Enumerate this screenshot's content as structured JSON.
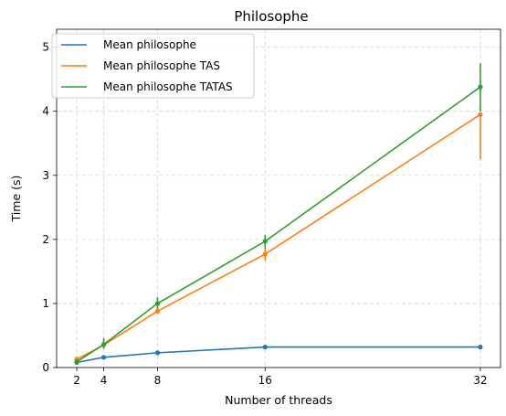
{
  "chart_data": {
    "type": "line",
    "title": "Philosophe",
    "xlabel": "Number of threads",
    "ylabel": "Time (s)",
    "xlim": [
      0.5,
      33.5
    ],
    "ylim": [
      0,
      5.28
    ],
    "xticks": [
      2,
      4,
      8,
      16,
      32
    ],
    "yticks": [
      0,
      1,
      2,
      3,
      4,
      5
    ],
    "x_tick_labels": [
      "2",
      "4",
      "8",
      "16",
      "32"
    ],
    "y_tick_labels": [
      "0",
      "1",
      "2",
      "3",
      "4",
      "5"
    ],
    "grid": true,
    "legend_position": "top-left",
    "x": [
      2,
      4,
      8,
      16,
      32
    ],
    "series": [
      {
        "name": "Mean philosophe",
        "color": "#1f77b4",
        "values": [
          0.08,
          0.16,
          0.23,
          0.32,
          0.32
        ],
        "error_low": [
          0.07,
          0.15,
          0.22,
          0.31,
          0.31
        ],
        "error_high": [
          0.09,
          0.17,
          0.24,
          0.33,
          0.33
        ]
      },
      {
        "name": "Mean philosophe TAS",
        "color": "#ff7f0e",
        "values": [
          0.13,
          0.35,
          0.88,
          1.77,
          3.95
        ],
        "error_low": [
          0.11,
          0.31,
          0.84,
          1.67,
          3.25
        ],
        "error_high": [
          0.15,
          0.42,
          0.93,
          1.87,
          3.97
        ]
      },
      {
        "name": "Mean philosophe TATAS",
        "color": "#2ca02c",
        "values": [
          0.09,
          0.36,
          1.0,
          1.97,
          4.38
        ],
        "error_low": [
          0.07,
          0.29,
          0.9,
          1.86,
          4.0
        ],
        "error_high": [
          0.12,
          0.46,
          1.1,
          2.07,
          4.75
        ]
      }
    ]
  }
}
